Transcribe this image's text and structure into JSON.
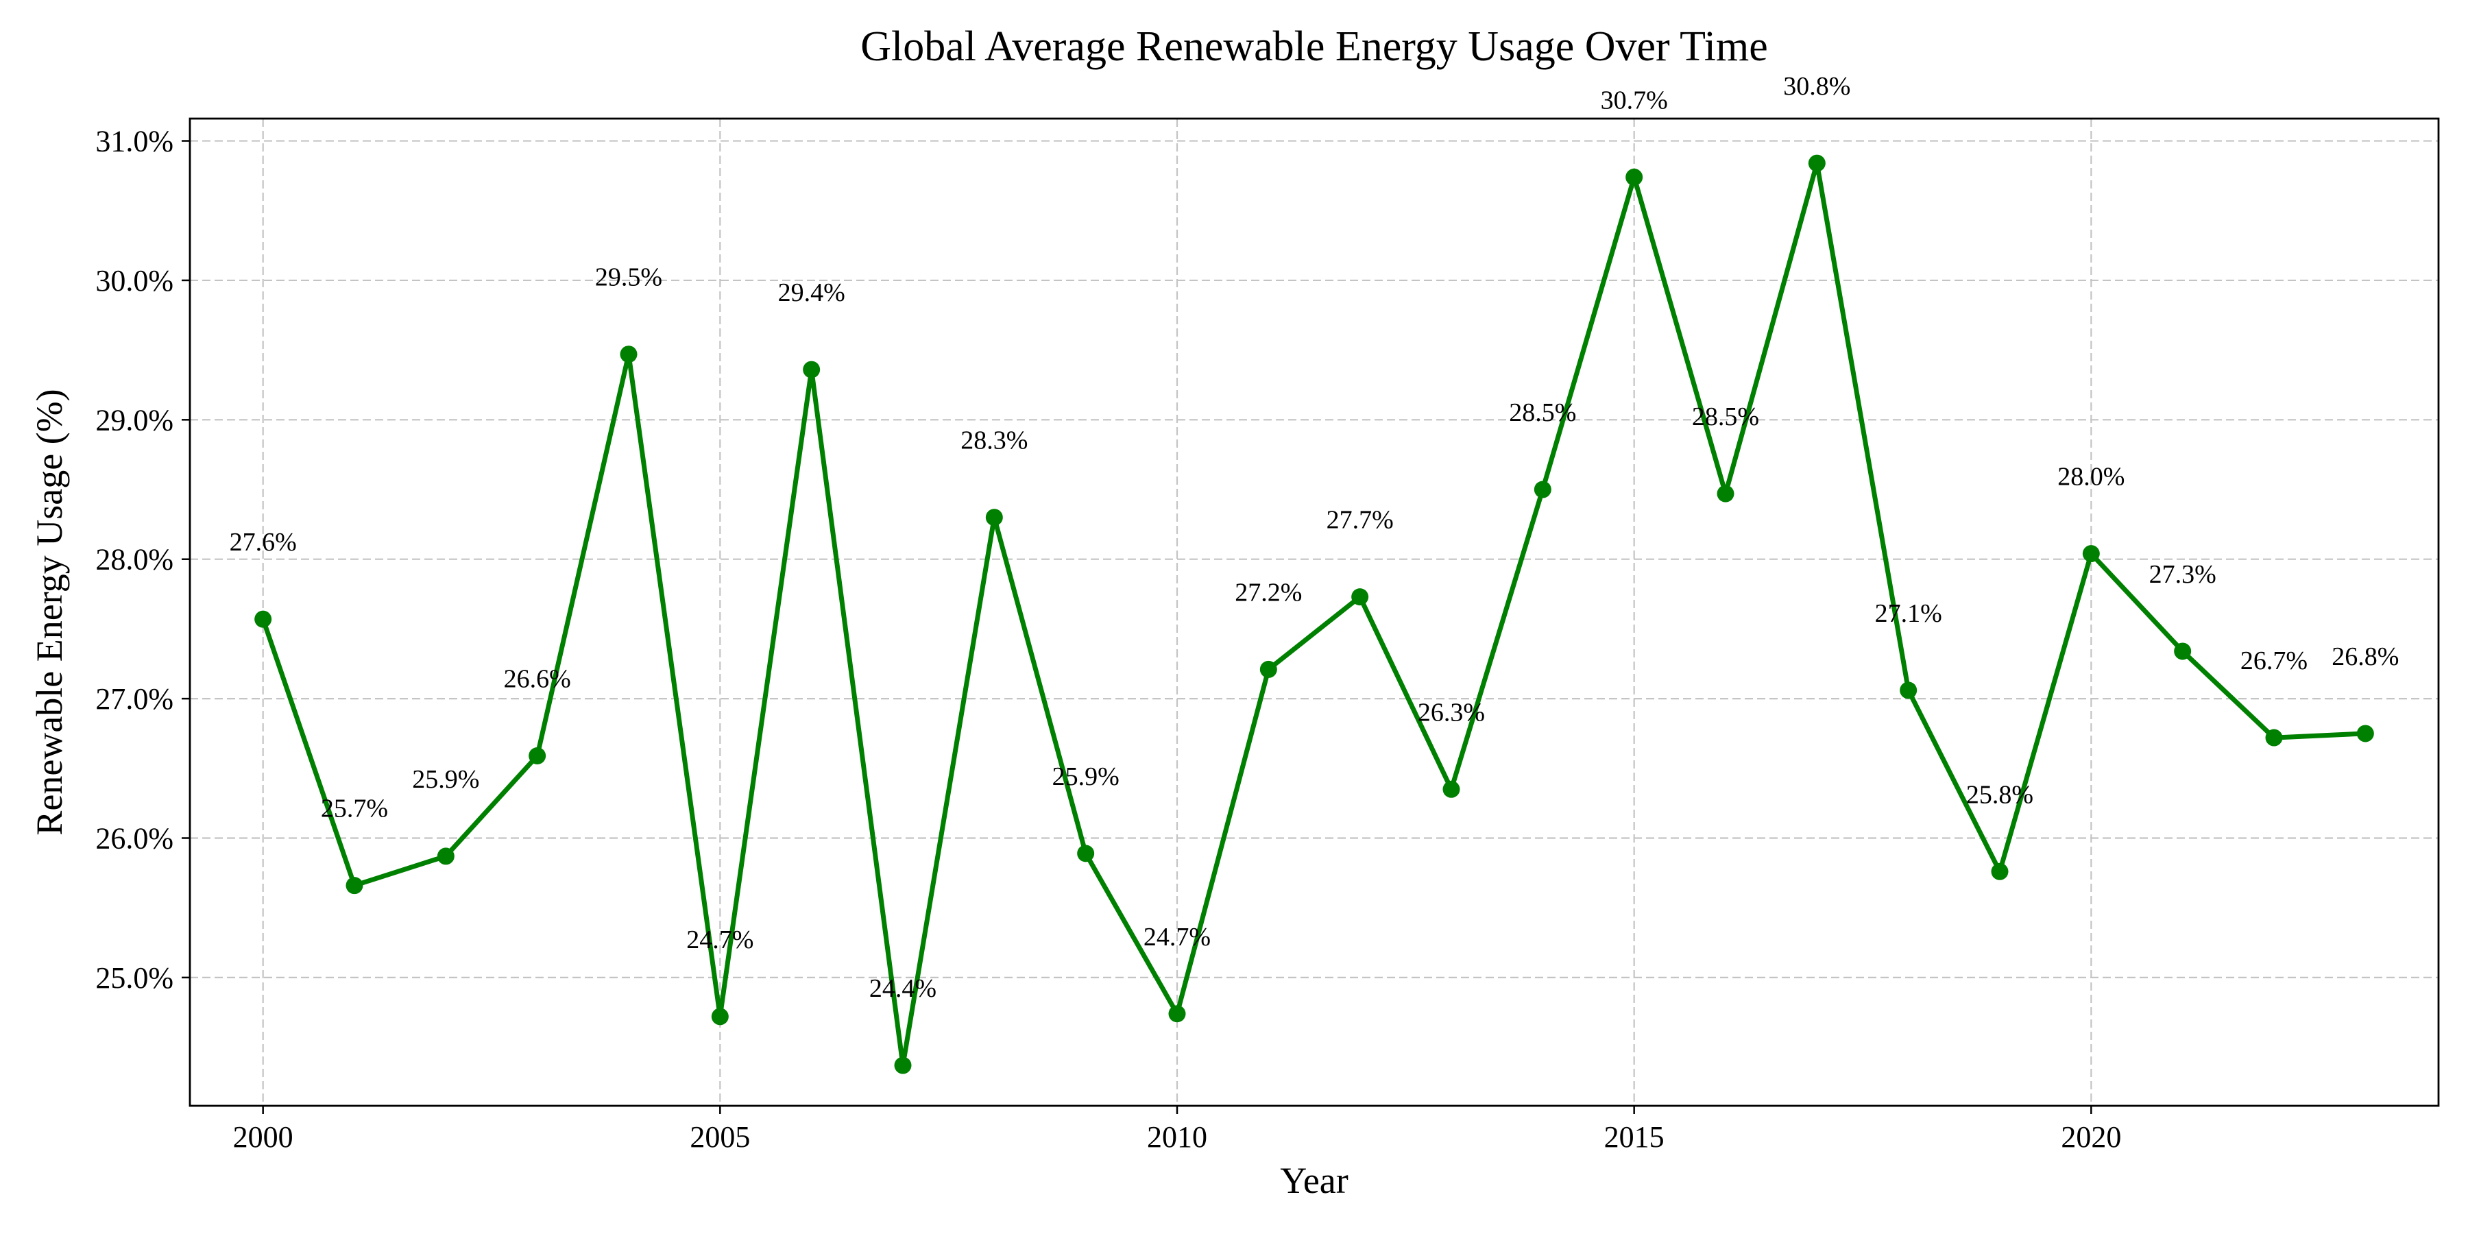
{
  "chart_data": {
    "type": "line",
    "title": "Global Average Renewable Energy Usage Over Time",
    "xlabel": "Year",
    "ylabel": "Renewable Energy Usage (%)",
    "xlim": [
      1999.2,
      2023.8
    ],
    "ylim": [
      24.08,
      31.16
    ],
    "x_ticks": [
      2000,
      2005,
      2010,
      2015,
      2020
    ],
    "y_ticks": [
      25.0,
      26.0,
      27.0,
      28.0,
      29.0,
      30.0,
      31.0
    ],
    "y_tick_labels": [
      "25.0%",
      "26.0%",
      "27.0%",
      "28.0%",
      "29.0%",
      "30.0%",
      "31.0%"
    ],
    "grid": true,
    "series_color": "#008000",
    "x": [
      2000,
      2001,
      2002,
      2003,
      2004,
      2005,
      2006,
      2007,
      2008,
      2009,
      2010,
      2011,
      2012,
      2013,
      2014,
      2015,
      2016,
      2017,
      2018,
      2019,
      2020,
      2021,
      2022,
      2023
    ],
    "values": [
      27.57,
      25.66,
      25.87,
      26.59,
      29.47,
      24.72,
      29.36,
      24.37,
      28.3,
      25.89,
      24.74,
      27.21,
      27.73,
      26.35,
      28.5,
      30.74,
      28.47,
      30.84,
      27.06,
      25.76,
      28.04,
      27.34,
      26.72,
      26.75
    ],
    "data_labels": [
      "27.6%",
      "25.7%",
      "25.9%",
      "26.6%",
      "29.5%",
      "24.7%",
      "29.4%",
      "24.4%",
      "28.3%",
      "25.9%",
      "24.7%",
      "27.2%",
      "27.7%",
      "26.3%",
      "28.5%",
      "30.7%",
      "28.5%",
      "30.8%",
      "27.1%",
      "25.8%",
      "28.0%",
      "27.3%",
      "26.7%",
      "26.8%"
    ]
  }
}
